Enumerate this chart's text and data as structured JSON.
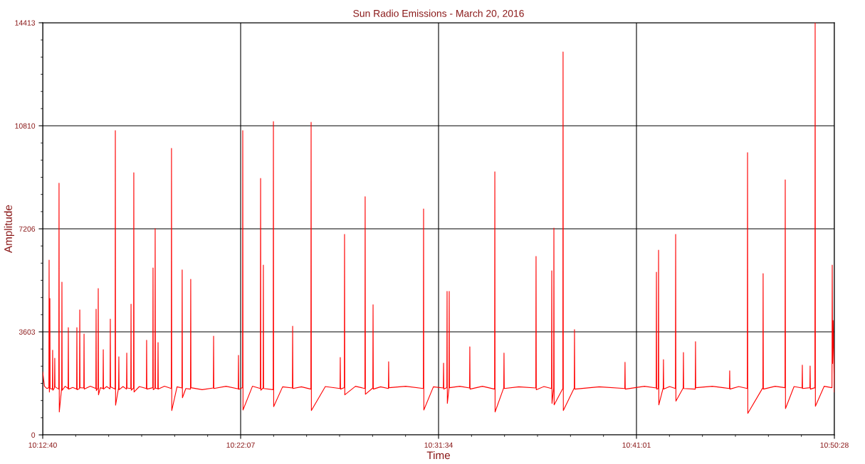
{
  "chart_data": {
    "type": "line",
    "title": "Sun Radio Emissions - March 20, 2016",
    "xlabel": "Time",
    "ylabel": "Amplitude",
    "xlim": [
      10.21111,
      10.84111
    ],
    "ylim": [
      0,
      14413
    ],
    "xticks": [
      {
        "value": 10.21111,
        "label": "10:12:40"
      },
      {
        "value": 10.23736,
        "label": null
      },
      {
        "value": 10.26361,
        "label": null
      },
      {
        "value": 10.28986,
        "label": null
      },
      {
        "value": 10.31611,
        "label": null
      },
      {
        "value": 10.34236,
        "label": null
      },
      {
        "value": 10.36861,
        "label": "10:22:07"
      },
      {
        "value": 10.39486,
        "label": null
      },
      {
        "value": 10.42111,
        "label": null
      },
      {
        "value": 10.44736,
        "label": null
      },
      {
        "value": 10.47361,
        "label": null
      },
      {
        "value": 10.49986,
        "label": null
      },
      {
        "value": 10.52611,
        "label": "10:31:34"
      },
      {
        "value": 10.55236,
        "label": null
      },
      {
        "value": 10.57861,
        "label": null
      },
      {
        "value": 10.60486,
        "label": null
      },
      {
        "value": 10.63111,
        "label": null
      },
      {
        "value": 10.65736,
        "label": null
      },
      {
        "value": 10.68361,
        "label": "10:41:01"
      },
      {
        "value": 10.70986,
        "label": null
      },
      {
        "value": 10.73611,
        "label": null
      },
      {
        "value": 10.76236,
        "label": null
      },
      {
        "value": 10.78861,
        "label": null
      },
      {
        "value": 10.81486,
        "label": null
      },
      {
        "value": 10.84111,
        "label": "10:50:28"
      }
    ],
    "yticks": [
      0,
      {
        "value": 600,
        "label": null
      },
      {
        "value": 1201,
        "label": null
      },
      {
        "value": 1801,
        "label": null
      },
      {
        "value": 2402,
        "label": null
      },
      {
        "value": 3002,
        "label": null
      },
      3603,
      {
        "value": 4204,
        "label": null
      },
      {
        "value": 4804,
        "label": null
      },
      {
        "value": 5405,
        "label": null
      },
      {
        "value": 6005,
        "label": null
      },
      {
        "value": 6606,
        "label": null
      },
      7206,
      {
        "value": 7807,
        "label": null
      },
      {
        "value": 8408,
        "label": null
      },
      {
        "value": 9008,
        "label": null
      },
      {
        "value": 9609,
        "label": null
      },
      {
        "value": 10209,
        "label": null
      },
      10810,
      {
        "value": 11410,
        "label": null
      },
      {
        "value": 12011,
        "label": null
      },
      {
        "value": 12611,
        "label": null
      },
      {
        "value": 13212,
        "label": null
      },
      {
        "value": 13812,
        "label": null
      },
      14413
    ],
    "grid": true,
    "marker": "none",
    "line_style": "solid",
    "series": [
      {
        "color": "#ff0000",
        "x": [
          10.21111,
          10.2125,
          10.2145,
          10.216,
          10.2162,
          10.2164,
          10.2166,
          10.2168,
          10.217,
          10.2188,
          10.219,
          10.2192,
          10.2205,
          10.2207,
          10.2209,
          10.2239,
          10.2241,
          10.2243,
          10.2262,
          10.2264,
          10.2266,
          10.229,
          10.2313,
          10.2315,
          10.2317,
          10.235,
          10.2381,
          10.2383,
          10.2385,
          10.2404,
          10.2406,
          10.2408,
          10.2438,
          10.244,
          10.2442,
          10.249,
          10.2534,
          10.2536,
          10.2538,
          10.2551,
          10.2553,
          10.2555,
          10.257,
          10.2591,
          10.2593,
          10.2595,
          10.262,
          10.2647,
          10.2649,
          10.2651,
          10.2687,
          10.2689,
          10.2691,
          10.2715,
          10.2717,
          10.2719,
          10.275,
          10.2778,
          10.278,
          10.2782,
          10.2812,
          10.2814,
          10.2816,
          10.2834,
          10.2836,
          10.2838,
          10.288,
          10.2936,
          10.2938,
          10.294,
          10.2987,
          10.2989,
          10.2991,
          10.3004,
          10.3006,
          10.3008,
          10.3027,
          10.3029,
          10.3031,
          10.308,
          10.3134,
          10.3136,
          10.3138,
          10.318,
          10.3219,
          10.3221,
          10.3223,
          10.325,
          10.3287,
          10.3289,
          10.3291,
          10.338,
          10.3469,
          10.3471,
          10.3473,
          10.357,
          10.3667,
          10.3669,
          10.3671,
          10.3701,
          10.3703,
          10.3705,
          10.378,
          10.3843,
          10.3845,
          10.3847,
          10.3865,
          10.3867,
          10.3869,
          10.3945,
          10.3947,
          10.3949,
          10.402,
          10.4098,
          10.41,
          10.4102,
          10.417,
          10.4245,
          10.4247,
          10.4249,
          10.436,
          10.4477,
          10.4479,
          10.4481,
          10.4511,
          10.4513,
          10.4515,
          10.46,
          10.4675,
          10.4677,
          10.4679,
          10.4738,
          10.474,
          10.4742,
          10.48,
          10.4862,
          10.4864,
          10.4866,
          10.5,
          10.514,
          10.5142,
          10.5144,
          10.522,
          10.5299,
          10.5301,
          10.5303,
          10.5327,
          10.5329,
          10.5331,
          10.5344,
          10.5346,
          10.5348,
          10.543,
          10.5508,
          10.551,
          10.5512,
          10.561,
          10.5707,
          10.5709,
          10.5711,
          10.578,
          10.5782,
          10.5784,
          10.59,
          10.6035,
          10.6037,
          10.6039,
          10.61,
          10.616,
          10.6162,
          10.6164,
          10.6177,
          10.6179,
          10.6181,
          10.625,
          10.6252,
          10.6254,
          10.6341,
          10.6343,
          10.6345,
          10.654,
          10.6743,
          10.6745,
          10.6747,
          10.69,
          10.6993,
          10.6995,
          10.6997,
          10.701,
          10.7012,
          10.7014,
          10.7049,
          10.7051,
          10.7053,
          10.71,
          10.7146,
          10.7148,
          10.715,
          10.7208,
          10.721,
          10.7212,
          10.7304,
          10.7306,
          10.7308,
          10.744,
          10.7576,
          10.7578,
          10.758,
          10.765,
          10.7718,
          10.772,
          10.7722,
          10.7842,
          10.7844,
          10.7846,
          10.794,
          10.8018,
          10.802,
          10.8022,
          10.809,
          10.8154,
          10.8156,
          10.8158,
          10.8216,
          10.8218,
          10.822,
          10.8256,
          10.8258,
          10.826,
          10.833,
          10.8392,
          10.8394,
          10.8397,
          10.8401,
          10.8405,
          10.8411
        ],
        "values": [
          2200,
          1700,
          1620,
          1650,
          6110,
          1500,
          1640,
          4770,
          1620,
          1600,
          2960,
          1560,
          1640,
          2680,
          1680,
          1600,
          8800,
          800,
          1650,
          5340,
          1560,
          1700,
          1620,
          3750,
          1600,
          1660,
          1600,
          3750,
          1580,
          1620,
          4370,
          1650,
          1640,
          3530,
          1600,
          1700,
          1620,
          4400,
          1550,
          1640,
          5120,
          1400,
          1650,
          1620,
          2980,
          1600,
          1690,
          1610,
          4050,
          1680,
          1600,
          10640,
          1040,
          1650,
          2730,
          1580,
          1690,
          1600,
          2860,
          1640,
          1620,
          4570,
          1560,
          1640,
          9170,
          1500,
          1690,
          1620,
          3310,
          1600,
          1650,
          5840,
          1580,
          1620,
          7210,
          1640,
          1610,
          3230,
          1600,
          1700,
          1620,
          10020,
          850,
          1680,
          1640,
          5770,
          1300,
          1620,
          1600,
          5440,
          1650,
          1580,
          1640,
          3450,
          1620,
          1700,
          1610,
          2780,
          1590,
          1650,
          10640,
          870,
          1700,
          1620,
          8970,
          1560,
          1640,
          5940,
          1620,
          1580,
          10960,
          990,
          1680,
          1640,
          3800,
          1620,
          1680,
          1600,
          10930,
          850,
          1690,
          1620,
          2710,
          1600,
          1650,
          7010,
          1400,
          1700,
          1620,
          8330,
          1420,
          1640,
          4550,
          1600,
          1680,
          1620,
          2560,
          1650,
          1700,
          1620,
          7900,
          870,
          1680,
          1640,
          2510,
          1600,
          1650,
          5020,
          1100,
          1620,
          5020,
          1650,
          1700,
          1640,
          3080,
          1600,
          1700,
          1600,
          9200,
          800,
          1650,
          2860,
          1620,
          1680,
          1640,
          6240,
          1580,
          1690,
          1620,
          5740,
          1100,
          1640,
          7230,
          1050,
          1620,
          13390,
          850,
          1640,
          3680,
          1600,
          1680,
          1620,
          2540,
          1600,
          1700,
          1640,
          5690,
          1600,
          1620,
          6460,
          1050,
          1650,
          2630,
          1600,
          1690,
          1620,
          7010,
          1180,
          1640,
          2880,
          1620,
          1600,
          3260,
          1650,
          1700,
          1620,
          2240,
          1600,
          1690,
          1620,
          9870,
          750,
          1650,
          5640,
          1600,
          1700,
          1650,
          8920,
          920,
          1690,
          1640,
          2440,
          1620,
          1650,
          2410,
          1600,
          1650,
          14413,
          1000,
          1700,
          1650,
          5940,
          2500,
          4000,
          3000,
          1500
        ]
      }
    ]
  }
}
